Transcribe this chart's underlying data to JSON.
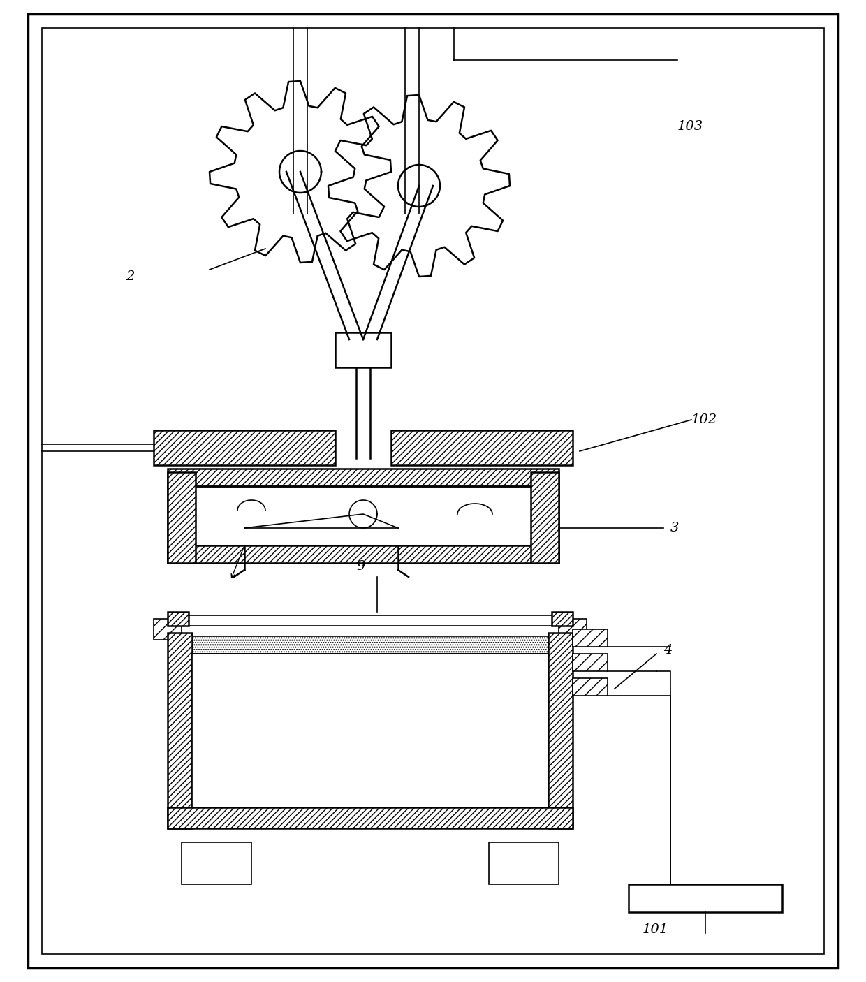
{
  "bg_color": "#ffffff",
  "line_color": "#000000",
  "hatch_color": "#000000",
  "label_2": "2",
  "label_3": "3",
  "label_4": "4",
  "label_9": "9",
  "label_101": "101",
  "label_102": "102",
  "label_103": "103",
  "figsize": [
    12.4,
    14.06
  ],
  "dpi": 100
}
